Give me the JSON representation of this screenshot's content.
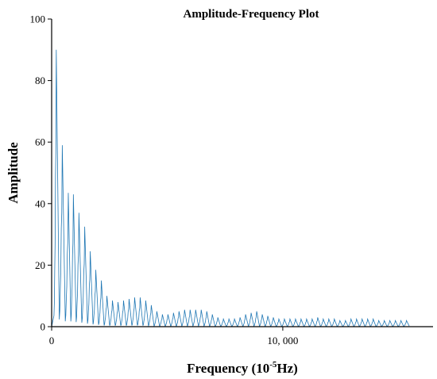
{
  "chart_data": {
    "type": "line",
    "title": "Amplitude-Frequency Plot",
    "xlabel": "Frequency (10",
    "xlabel_sup": "-5",
    "xlabel_suffix": "Hz)",
    "ylabel": "Amplitude",
    "xlim": [
      0,
      16500
    ],
    "ylim": [
      0,
      100
    ],
    "x_ticks": [
      0,
      10000
    ],
    "x_tick_labels": [
      "0",
      "10, 000"
    ],
    "y_ticks": [
      0,
      20,
      40,
      60,
      80,
      100
    ],
    "y_tick_labels": [
      "0",
      "20",
      "40",
      "60",
      "80",
      "100"
    ],
    "grid": false,
    "series": [
      {
        "color": "#1f77b4",
        "peak_x": [
          200,
          460,
          720,
          940,
          1180,
          1430,
          1670,
          1910,
          2150,
          2390,
          2630,
          2870,
          3110,
          3350,
          3590,
          3830,
          4070,
          4310,
          4550,
          4790,
          5030,
          5270,
          5510,
          5750,
          5990,
          6230,
          6470,
          6710,
          6950,
          7190,
          7430,
          7670,
          7910,
          8150,
          8390,
          8630,
          8870,
          9110,
          9350,
          9590,
          9830,
          10070,
          10310,
          10550,
          10790,
          11030,
          11270,
          11510,
          11750,
          11990,
          12230,
          12470,
          12710,
          12950,
          13190,
          13430,
          13670,
          13910,
          14150,
          14390,
          14630,
          14870,
          15110,
          15350
        ],
        "peak_y": [
          90,
          59,
          43.5,
          43,
          37,
          32.5,
          24.5,
          18.5,
          15,
          10,
          8.5,
          8,
          8.5,
          9,
          9.5,
          9.5,
          8.5,
          7,
          5,
          4,
          4,
          4.5,
          5,
          5.5,
          5.5,
          5.5,
          5.5,
          5,
          4,
          3,
          2.5,
          2.5,
          2.5,
          3,
          4,
          4.5,
          5,
          4,
          3.5,
          3,
          2.5,
          2.5,
          2.5,
          2.5,
          2.5,
          2.5,
          2.5,
          3,
          2.5,
          2.5,
          2.5,
          2,
          2,
          2.5,
          2.5,
          2.5,
          2.5,
          2.5,
          2,
          2,
          2,
          2,
          2,
          2
        ]
      }
    ]
  }
}
